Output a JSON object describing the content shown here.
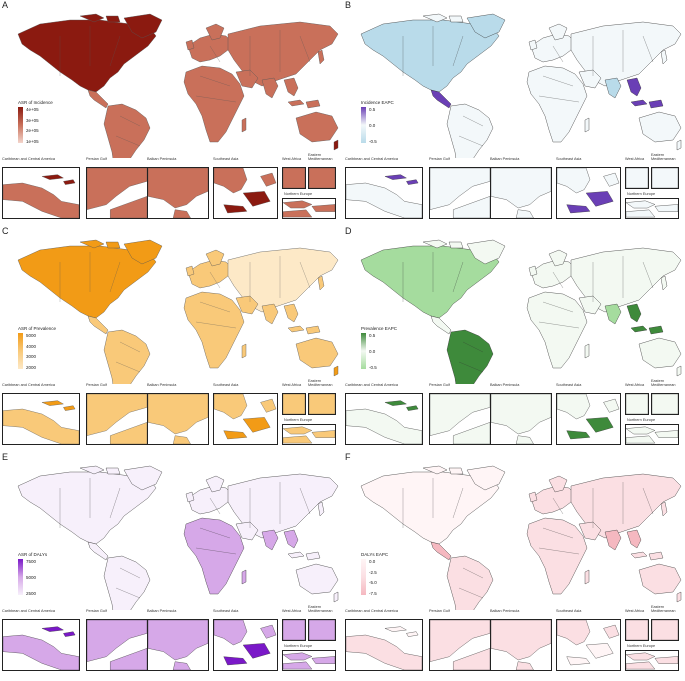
{
  "panels": [
    {
      "letter": "A",
      "legend_title": "ASR of Incidence",
      "ticks": [
        "4e+05",
        "3e+05",
        "2e+05",
        "1e+05"
      ],
      "c_lo": "#f3d5cc",
      "c_mid": "#c9705a",
      "c_hi": "#8b1a10",
      "c_sea": "#ffffff",
      "c_border": "#555555",
      "scheme": "incidence"
    },
    {
      "letter": "B",
      "legend_title": "Incidence EAPC",
      "ticks": [
        "0.5",
        "0.0",
        "-0.5"
      ],
      "c_lo": "#b9dbea",
      "c_mid": "#f3f8fa",
      "c_hi": "#6a3fb5",
      "c_sea": "#ffffff",
      "c_border": "#333333",
      "scheme": "eapc_inc"
    },
    {
      "letter": "C",
      "legend_title": "ASR of Prevalence",
      "ticks": [
        "5000",
        "4000",
        "3000",
        "2000"
      ],
      "c_lo": "#fde9c7",
      "c_mid": "#f9c979",
      "c_hi": "#f29b16",
      "c_sea": "#ffffff",
      "c_border": "#555555",
      "scheme": "prevalence"
    },
    {
      "letter": "D",
      "legend_title": "Prevalence EAPC",
      "ticks": [
        "0.5",
        "0.0",
        "-0.5"
      ],
      "c_lo": "#a5dc9e",
      "c_mid": "#f3f9f2",
      "c_hi": "#3e8a3b",
      "c_sea": "#ffffff",
      "c_border": "#333333",
      "scheme": "eapc_prev"
    },
    {
      "letter": "E",
      "legend_title": "ASR of DALYs",
      "ticks": [
        "7500",
        "5000",
        "2500"
      ],
      "c_lo": "#f7f0fb",
      "c_mid": "#d6a8e8",
      "c_hi": "#7a18c8",
      "c_sea": "#ffffff",
      "c_border": "#333333",
      "scheme": "dalys"
    },
    {
      "letter": "F",
      "legend_title": "DALYs EAPC",
      "ticks": [
        "0.0",
        "-2.5",
        "-5.0",
        "-7.5"
      ],
      "c_lo": "#f5b8c0",
      "c_mid": "#fbdfe3",
      "c_hi": "#fff5f6",
      "c_sea": "#ffffff",
      "c_border": "#333333",
      "scheme": "eapc_daly"
    }
  ],
  "inset_labels": {
    "caribbean": "Caribbean and Central America",
    "persian": "Persian Gulf",
    "balkan": "Balkan Peninsula",
    "seasia": "Southeast Asia",
    "westafrica": "West Africa",
    "eastmed": "Eastern Mediterranean",
    "neurope": "Northern Europe"
  }
}
